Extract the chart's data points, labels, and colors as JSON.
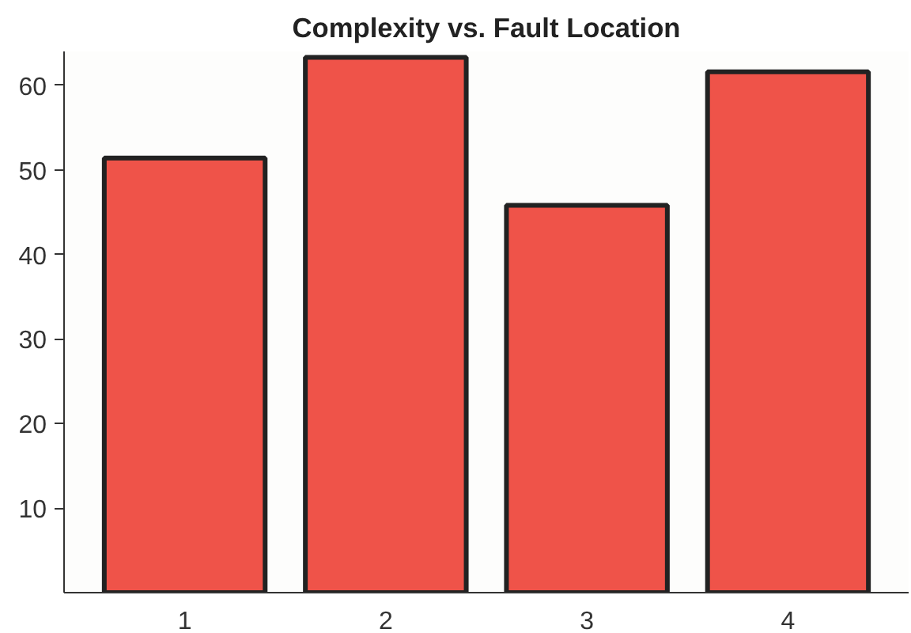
{
  "chart_data": {
    "type": "bar",
    "title": "Complexity vs. Fault Location",
    "categories": [
      "1",
      "2",
      "3",
      "4"
    ],
    "values": [
      51.4,
      63.3,
      45.8,
      61.6
    ],
    "color": "#ef5349",
    "ylim": [
      0,
      64
    ],
    "yticks": [
      10,
      20,
      30,
      40,
      50,
      60
    ],
    "grid": false
  }
}
